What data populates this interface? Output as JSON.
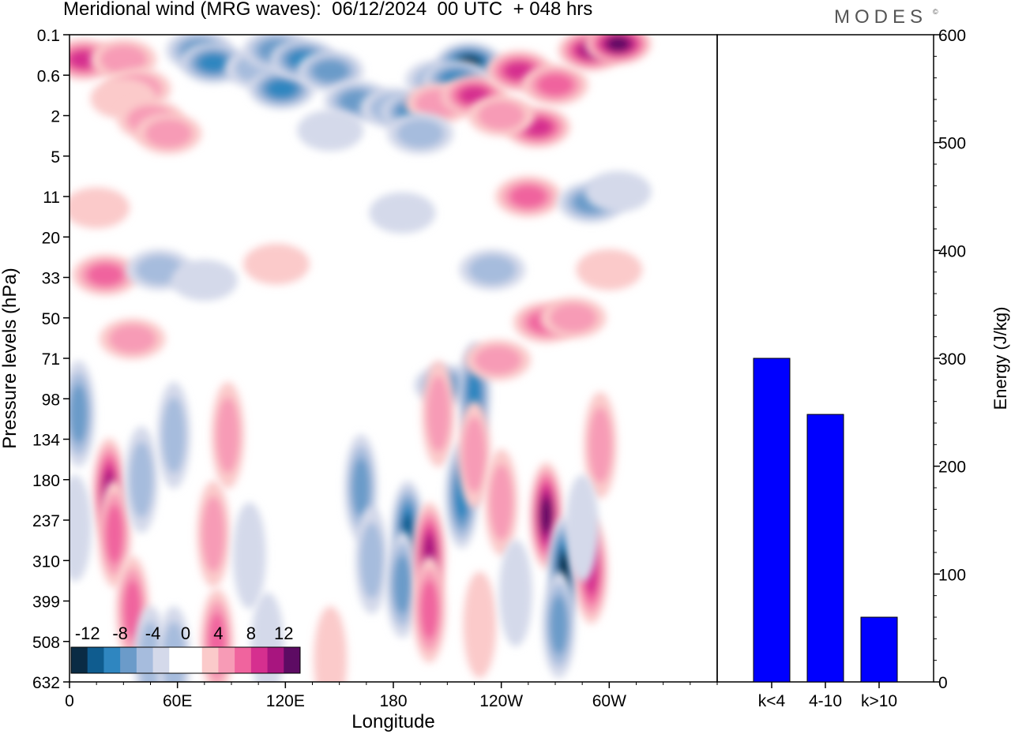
{
  "title": "Meridional wind (MRG waves):  06/12/2024  00 UTC  + 048 hrs",
  "brand": "MODES",
  "brand_mark": "©",
  "chart_data": [
    {
      "type": "heatmap",
      "title": "Meridional wind (MRG waves):  06/12/2024  00 UTC  + 048 hrs",
      "xlabel": "Longitude",
      "ylabel": "Pressure levels (hPa)",
      "x_ticks": [
        "0",
        "60E",
        "120E",
        "180",
        "120W",
        "60W"
      ],
      "y_ticks": [
        "0.1",
        "0.6",
        "2",
        "5",
        "11",
        "20",
        "33",
        "50",
        "71",
        "98",
        "134",
        "180",
        "237",
        "310",
        "399",
        "508",
        "632"
      ],
      "colorbar": {
        "labels": [
          "-12",
          "-8",
          "-4",
          "0",
          "4",
          "8",
          "12"
        ],
        "colors": [
          "#0a2b44",
          "#0f5c8f",
          "#2f86c0",
          "#6b9bc9",
          "#a6bcdd",
          "#d4d9ea",
          "#ffffff",
          "#ffffff",
          "#fbcaca",
          "#f79bb6",
          "#f0649e",
          "#d62f8f",
          "#a8157f",
          "#5d0b63"
        ]
      },
      "features": [
        {
          "lon": 8,
          "lev": 0.3,
          "value": 9
        },
        {
          "lon": 30,
          "lev": 0.3,
          "value": 4
        },
        {
          "lon": 38,
          "lev": 0.9,
          "value": 5
        },
        {
          "lon": 30,
          "lev": 1.2,
          "value": 3
        },
        {
          "lon": 72,
          "lev": 0.2,
          "value": -7
        },
        {
          "lon": 80,
          "lev": 0.35,
          "value": -8
        },
        {
          "lon": 105,
          "lev": 0.45,
          "value": -5
        },
        {
          "lon": 115,
          "lev": 0.2,
          "value": -7
        },
        {
          "lon": 118,
          "lev": 0.9,
          "value": -9
        },
        {
          "lon": 130,
          "lev": 0.3,
          "value": -9
        },
        {
          "lon": 145,
          "lev": 0.5,
          "value": -6
        },
        {
          "lon": 160,
          "lev": 1.3,
          "value": -6
        },
        {
          "lon": 180,
          "lev": 1.6,
          "value": -5
        },
        {
          "lon": 192,
          "lev": 1.8,
          "value": -8
        },
        {
          "lon": 205,
          "lev": 0.7,
          "value": -4
        },
        {
          "lon": 222,
          "lev": 0.35,
          "value": -12
        },
        {
          "lon": 215,
          "lev": 0.7,
          "value": -8
        },
        {
          "lon": 205,
          "lev": 1.4,
          "value": 5
        },
        {
          "lon": 225,
          "lev": 1.1,
          "value": 8
        },
        {
          "lon": 250,
          "lev": 0.5,
          "value": 8
        },
        {
          "lon": 270,
          "lev": 0.8,
          "value": 7
        },
        {
          "lon": 290,
          "lev": 0.2,
          "value": 11
        },
        {
          "lon": 305,
          "lev": 0.15,
          "value": 13
        },
        {
          "lon": 260,
          "lev": 2.6,
          "value": 8
        },
        {
          "lon": 240,
          "lev": 2.0,
          "value": 4
        },
        {
          "lon": 45,
          "lev": 2.2,
          "value": 5
        },
        {
          "lon": 55,
          "lev": 3.0,
          "value": 4
        },
        {
          "lon": 195,
          "lev": 3.0,
          "value": -4
        },
        {
          "lon": 145,
          "lev": 2.8,
          "value": -3
        },
        {
          "lon": 255,
          "lev": 11,
          "value": 6
        },
        {
          "lon": 290,
          "lev": 12,
          "value": -6
        },
        {
          "lon": 305,
          "lev": 10,
          "value": -3
        },
        {
          "lon": 300,
          "lev": 30,
          "value": 3
        },
        {
          "lon": 15,
          "lev": 13,
          "value": 3
        },
        {
          "lon": 185,
          "lev": 14,
          "value": -3
        },
        {
          "lon": 20,
          "lev": 32,
          "value": 6
        },
        {
          "lon": 50,
          "lev": 30,
          "value": -5
        },
        {
          "lon": 75,
          "lev": 34,
          "value": -3
        },
        {
          "lon": 115,
          "lev": 28,
          "value": 3
        },
        {
          "lon": 235,
          "lev": 30,
          "value": -4
        },
        {
          "lon": 210,
          "lev": 88,
          "value": -7
        },
        {
          "lon": 225,
          "lev": 95,
          "value": -9
        },
        {
          "lon": 238,
          "lev": 72,
          "value": 5
        },
        {
          "lon": 265,
          "lev": 52,
          "value": 6
        },
        {
          "lon": 280,
          "lev": 50,
          "value": 5
        },
        {
          "lon": 35,
          "lev": 60,
          "value": 4
        },
        {
          "lon": 5,
          "lev": 110,
          "value": -6
        },
        {
          "lon": 22,
          "lev": 195,
          "value": 11
        },
        {
          "lon": 25,
          "lev": 260,
          "value": 7
        },
        {
          "lon": 35,
          "lev": 420,
          "value": 6
        },
        {
          "lon": 45,
          "lev": 560,
          "value": -5
        },
        {
          "lon": 58,
          "lev": 560,
          "value": -4
        },
        {
          "lon": 40,
          "lev": 180,
          "value": -5
        },
        {
          "lon": 58,
          "lev": 130,
          "value": -4
        },
        {
          "lon": 80,
          "lev": 260,
          "value": 5
        },
        {
          "lon": 82,
          "lev": 510,
          "value": 6
        },
        {
          "lon": 88,
          "lev": 130,
          "value": 5
        },
        {
          "lon": 110,
          "lev": 520,
          "value": -3
        },
        {
          "lon": 145,
          "lev": 560,
          "value": 3
        },
        {
          "lon": 162,
          "lev": 190,
          "value": -7
        },
        {
          "lon": 168,
          "lev": 310,
          "value": -4
        },
        {
          "lon": 188,
          "lev": 260,
          "value": -10
        },
        {
          "lon": 185,
          "lev": 360,
          "value": -7
        },
        {
          "lon": 200,
          "lev": 300,
          "value": 10
        },
        {
          "lon": 200,
          "lev": 420,
          "value": 7
        },
        {
          "lon": 205,
          "lev": 110,
          "value": 4
        },
        {
          "lon": 218,
          "lev": 200,
          "value": -8
        },
        {
          "lon": 225,
          "lev": 150,
          "value": 4
        },
        {
          "lon": 240,
          "lev": 210,
          "value": 5
        },
        {
          "lon": 228,
          "lev": 460,
          "value": 3
        },
        {
          "lon": 248,
          "lev": 380,
          "value": -3
        },
        {
          "lon": 265,
          "lev": 230,
          "value": 13
        },
        {
          "lon": 275,
          "lev": 330,
          "value": -13
        },
        {
          "lon": 272,
          "lev": 460,
          "value": -7
        },
        {
          "lon": 290,
          "lev": 330,
          "value": 9
        },
        {
          "lon": 295,
          "lev": 140,
          "value": 4
        },
        {
          "lon": 285,
          "lev": 250,
          "value": -3
        },
        {
          "lon": 3,
          "lev": 250,
          "value": -3
        },
        {
          "lon": 100,
          "lev": 300,
          "value": -3
        }
      ]
    },
    {
      "type": "bar",
      "ylabel": "Energy (J/kg)",
      "categories": [
        "k<4",
        "4-10",
        "k>10"
      ],
      "values": [
        300,
        248,
        60
      ],
      "ylim": [
        0,
        600
      ],
      "y_ticks": [
        "0",
        "100",
        "200",
        "300",
        "400",
        "500",
        "600"
      ],
      "color": "#0000ff"
    }
  ]
}
